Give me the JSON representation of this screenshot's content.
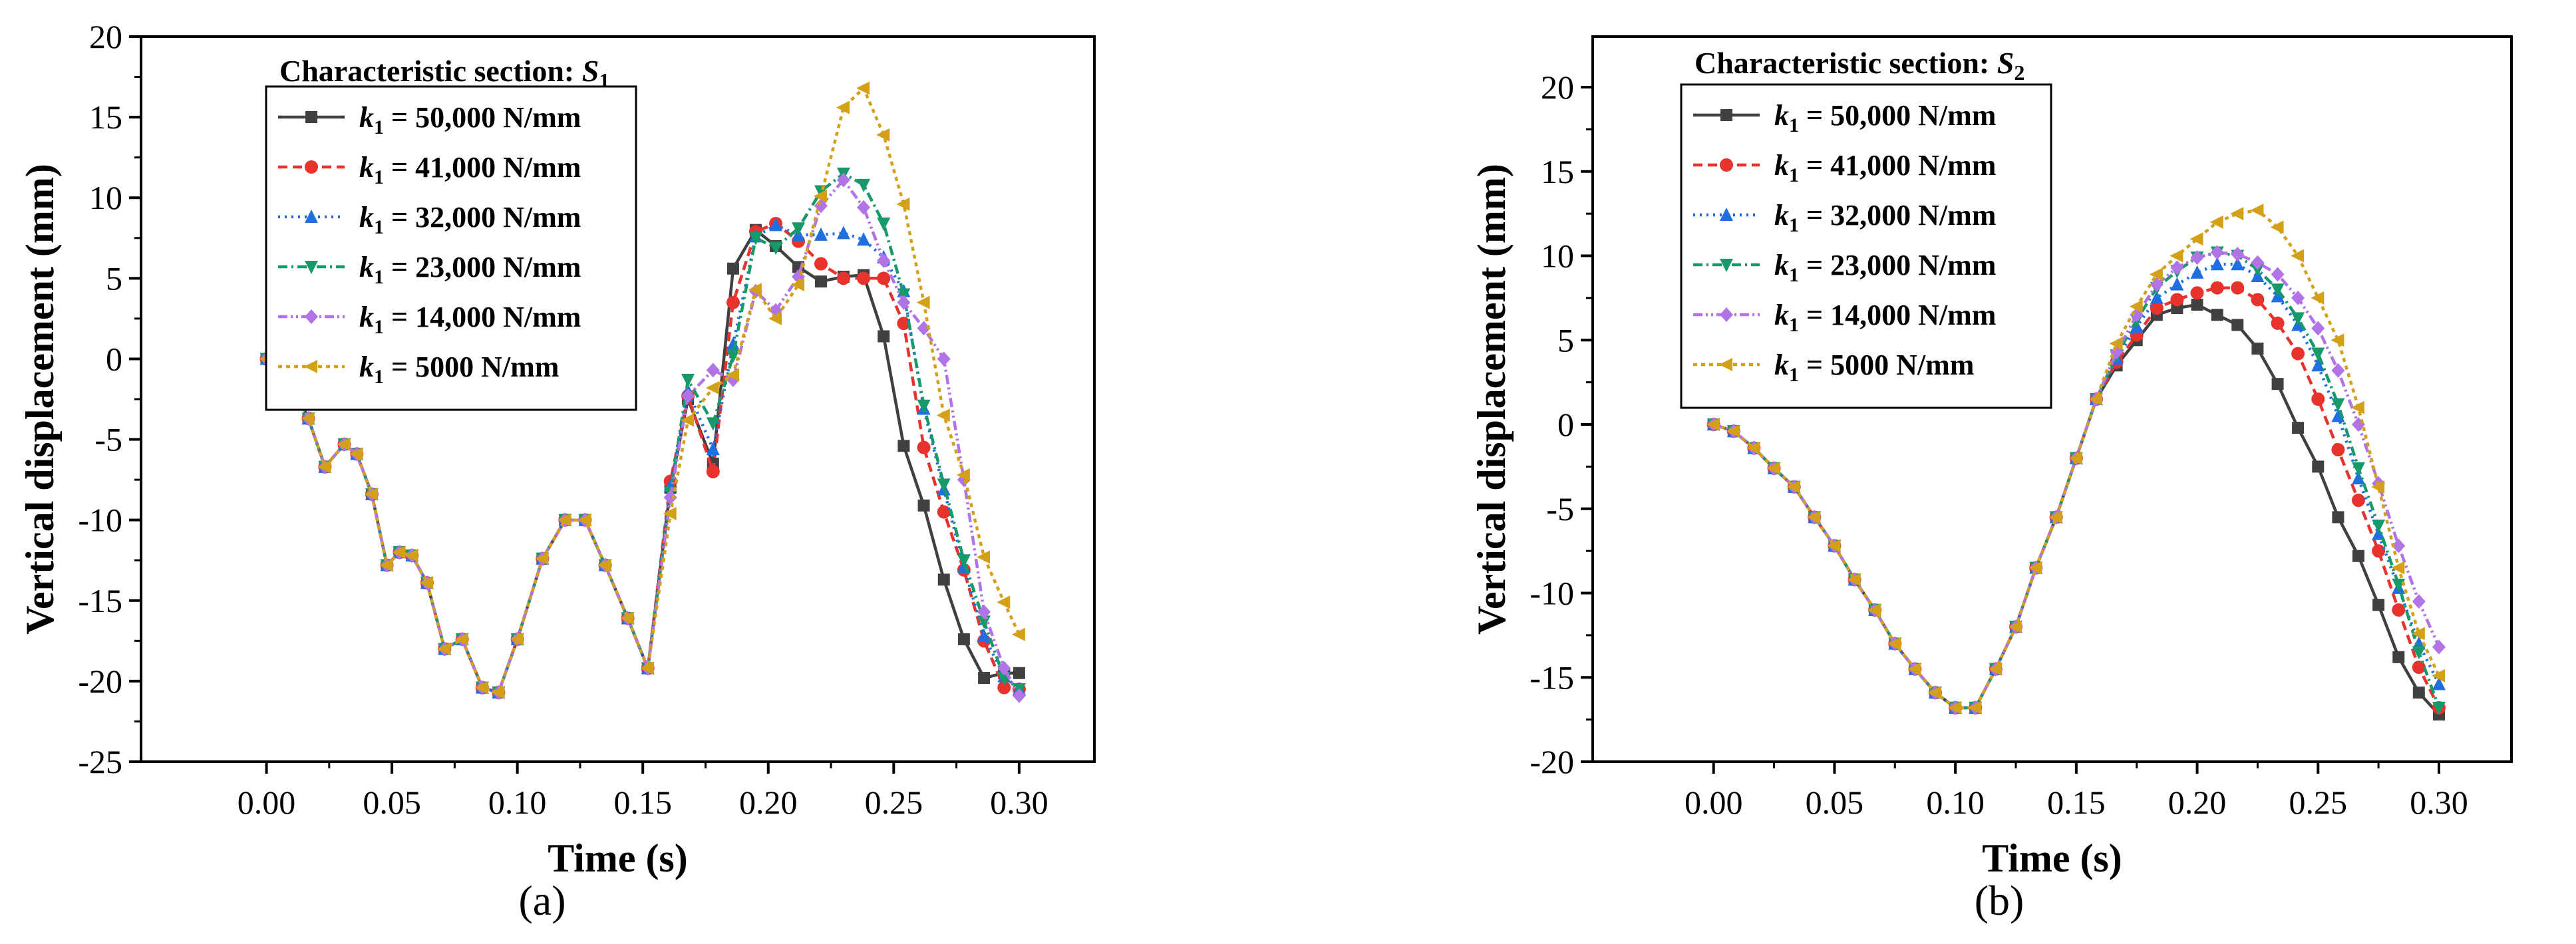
{
  "chart_data": [
    {
      "type": "line",
      "panel_label": "(a)",
      "xlabel": "Time (s)",
      "ylabel": "Vertical displacement (mm)",
      "xlim": [
        -0.05,
        0.33
      ],
      "ylim": [
        -25,
        20
      ],
      "xticks": [
        0.0,
        0.05,
        0.1,
        0.15,
        0.2,
        0.25,
        0.3
      ],
      "xtick_labels": [
        "0.00",
        "0.05",
        "0.10",
        "0.15",
        "0.20",
        "0.25",
        "0.30"
      ],
      "yticks": [
        -25,
        -20,
        -15,
        -10,
        -5,
        0,
        5,
        10,
        15,
        20
      ],
      "ytick_labels": [
        "-25",
        "-20",
        "-15",
        "-10",
        "-5",
        "0",
        "5",
        "10",
        "15",
        "20"
      ],
      "legend": {
        "title": "Characteristic section: ",
        "title_symbol": "S",
        "title_sub": "1",
        "position": "top-left"
      },
      "x": [
        0.0,
        0.008,
        0.0167,
        0.0233,
        0.031,
        0.036,
        0.042,
        0.048,
        0.053,
        0.058,
        0.064,
        0.071,
        0.078,
        0.086,
        0.0925,
        0.1,
        0.11,
        0.119,
        0.127,
        0.135,
        0.144,
        0.152,
        0.161,
        0.168,
        0.178,
        0.186,
        0.195,
        0.203,
        0.212,
        0.221,
        0.23,
        0.238,
        0.246,
        0.254,
        0.262,
        0.27,
        0.278,
        0.286,
        0.294,
        0.3
      ],
      "series": [
        {
          "name": "k1 = 50,000 N/mm",
          "label_sub": "1",
          "label_rest": " = 50,000 N/mm",
          "color": "#404040",
          "dash": "",
          "marker": "square",
          "values": [
            0,
            -0.7,
            -3.7,
            -6.7,
            -5.3,
            -5.9,
            -8.4,
            -12.8,
            -12,
            -12.2,
            -13.9,
            -18,
            -17.4,
            -20.4,
            -20.7,
            -17.4,
            -12.4,
            -10,
            -10,
            -12.8,
            -16.1,
            -19.2,
            -8,
            -2.5,
            -6.5,
            5.6,
            8,
            7,
            5.7,
            4.8,
            5.1,
            5.2,
            1.4,
            -5.4,
            -9.1,
            -13.7,
            -17.4,
            -19.8,
            -19.5,
            -19.5
          ]
        },
        {
          "name": "k1 = 41,000 N/mm",
          "label_sub": "1",
          "label_rest": " = 41,000 N/mm",
          "color": "#e8322e",
          "dash": "14,8",
          "marker": "circle",
          "values": [
            0,
            -0.7,
            -3.7,
            -6.7,
            -5.3,
            -5.9,
            -8.4,
            -12.8,
            -12,
            -12.2,
            -13.9,
            -18,
            -17.4,
            -20.4,
            -20.7,
            -17.4,
            -12.4,
            -10,
            -10,
            -12.8,
            -16.1,
            -19.2,
            -7.6,
            -2.3,
            -7,
            3.5,
            7.9,
            8.4,
            7.3,
            5.9,
            5,
            5,
            5,
            2.2,
            -5.5,
            -9.5,
            -13.1,
            -17.5,
            -20.4,
            -20.5
          ]
        },
        {
          "name": "k1 = 32,000 N/mm",
          "label_sub": "1",
          "label_rest": " = 32,000 N/mm",
          "color": "#1f6fe0",
          "dash": "3,7",
          "marker": "triangle-up",
          "values": [
            0,
            -0.7,
            -3.7,
            -6.7,
            -5.3,
            -5.9,
            -8.4,
            -12.8,
            -12,
            -12.2,
            -13.9,
            -18,
            -17.4,
            -20.4,
            -20.7,
            -17.4,
            -12.4,
            -10,
            -10,
            -12.8,
            -16.1,
            -19.2,
            -7.9,
            -2,
            -5.6,
            0.9,
            7.6,
            8.3,
            7.7,
            7.7,
            7.8,
            7.4,
            6.3,
            4.2,
            -3.1,
            -8.1,
            -12.9,
            -17.2,
            -19.7,
            -20.5
          ]
        },
        {
          "name": "k1 = 23,000 N/mm",
          "label_sub": "1",
          "label_rest": " = 23,000 N/mm",
          "color": "#169a6a",
          "dash": "14,6,3,6",
          "marker": "triangle-down",
          "values": [
            0,
            -0.7,
            -3.7,
            -6.7,
            -5.3,
            -5.9,
            -8.4,
            -12.8,
            -12,
            -12.2,
            -13.9,
            -18,
            -17.4,
            -20.4,
            -20.7,
            -17.4,
            -12.4,
            -10,
            -10,
            -12.8,
            -16.1,
            -19.2,
            -8.3,
            -1.3,
            -4,
            0.2,
            7.5,
            6.9,
            8.1,
            10.4,
            11.5,
            10.8,
            8.4,
            4,
            -2.9,
            -7.8,
            -12.5,
            -16.3,
            -19.8,
            -20.5
          ]
        },
        {
          "name": "k1 = 14,000 N/mm",
          "label_sub": "1",
          "label_rest": " = 14,000 N/mm",
          "color": "#b173e6",
          "dash": "14,5,3,5,3,5",
          "marker": "diamond",
          "values": [
            0,
            -0.7,
            -3.7,
            -6.7,
            -5.3,
            -5.9,
            -8.4,
            -12.8,
            -12,
            -12.2,
            -13.9,
            -18,
            -17.4,
            -20.4,
            -20.7,
            -17.4,
            -12.4,
            -10,
            -10,
            -12.8,
            -16.1,
            -19.2,
            -8.6,
            -2.3,
            -0.7,
            -1.3,
            4.2,
            3,
            5.1,
            9.5,
            11.1,
            9.4,
            6.1,
            3.5,
            1.9,
            0,
            -7.5,
            -15.7,
            -19.2,
            -20.9
          ]
        },
        {
          "name": "k1 = 5000 N/mm",
          "label_sub": "1",
          "label_rest": " = 5000 N/mm",
          "color": "#d4a017",
          "dash": "6,6",
          "marker": "triangle-left",
          "values": [
            0,
            -0.7,
            -3.7,
            -6.7,
            -5.3,
            -5.9,
            -8.4,
            -12.8,
            -12,
            -12.2,
            -13.9,
            -18,
            -17.4,
            -20.4,
            -20.7,
            -17.4,
            -12.4,
            -10,
            -10,
            -12.8,
            -16.1,
            -19.2,
            -9.6,
            -3.8,
            -1.8,
            -1,
            4.3,
            2.5,
            4.6,
            10.1,
            15.6,
            16.8,
            13.9,
            9.6,
            3.5,
            -3.5,
            -7.2,
            -12.3,
            -15.1,
            -17.1
          ]
        }
      ]
    },
    {
      "type": "line",
      "panel_label": "(b)",
      "xlabel": "Time (s)",
      "ylabel": "Vertical displacement (mm)",
      "xlim": [
        -0.05,
        0.33
      ],
      "ylim": [
        -20,
        23
      ],
      "xticks": [
        0.0,
        0.05,
        0.1,
        0.15,
        0.2,
        0.25,
        0.3
      ],
      "xtick_labels": [
        "0.00",
        "0.05",
        "0.10",
        "0.15",
        "0.20",
        "0.25",
        "0.30"
      ],
      "yticks": [
        -20,
        -15,
        -10,
        -5,
        0,
        5,
        10,
        15,
        20
      ],
      "ytick_labels": [
        "-20",
        "-15",
        "-10",
        "-5",
        "0",
        "5",
        "10",
        "15",
        "20"
      ],
      "legend": {
        "title": "Characteristic section: ",
        "title_symbol": "S",
        "title_sub": "2",
        "position": "top-left"
      },
      "x": [
        0.0,
        0.0083,
        0.0167,
        0.025,
        0.0333,
        0.0417,
        0.05,
        0.0583,
        0.0667,
        0.075,
        0.0833,
        0.0917,
        0.1,
        0.1083,
        0.1167,
        0.125,
        0.1333,
        0.1417,
        0.15,
        0.1583,
        0.1667,
        0.175,
        0.1833,
        0.1917,
        0.2,
        0.2083,
        0.2167,
        0.225,
        0.2333,
        0.2417,
        0.25,
        0.2583,
        0.2667,
        0.275,
        0.2833,
        0.2917,
        0.3
      ],
      "series": [
        {
          "name": "k1 = 50,000 N/mm",
          "label_sub": "1",
          "label_rest": " = 50,000 N/mm",
          "color": "#404040",
          "dash": "",
          "marker": "square",
          "values": [
            0,
            -0.4,
            -1.4,
            -2.6,
            -3.7,
            -5.5,
            -7.2,
            -9.2,
            -11,
            -13,
            -14.5,
            -15.9,
            -16.8,
            -16.8,
            -14.5,
            -12,
            -8.5,
            -5.5,
            -2,
            1.5,
            3.5,
            5,
            6.5,
            6.9,
            7.1,
            6.5,
            5.9,
            4.5,
            2.4,
            -0.2,
            -2.5,
            -5.5,
            -7.8,
            -10.7,
            -13.8,
            -15.9,
            -17.2
          ]
        },
        {
          "name": "k1 = 41,000 N/mm",
          "label_sub": "1",
          "label_rest": " = 41,000 N/mm",
          "color": "#e8322e",
          "dash": "14,8",
          "marker": "circle",
          "values": [
            0,
            -0.4,
            -1.4,
            -2.6,
            -3.7,
            -5.5,
            -7.2,
            -9.2,
            -11,
            -13,
            -14.5,
            -15.9,
            -16.8,
            -16.8,
            -14.5,
            -12,
            -8.5,
            -5.5,
            -2,
            1.5,
            3.7,
            5.3,
            6.9,
            7.4,
            7.8,
            8.1,
            8.1,
            7.4,
            6,
            4.2,
            1.5,
            -1.5,
            -4.5,
            -7.5,
            -11,
            -14.4,
            -16.8
          ]
        },
        {
          "name": "k1 = 32,000 N/mm",
          "label_sub": "1",
          "label_rest": " = 32,000 N/mm",
          "color": "#1f6fe0",
          "dash": "3,7",
          "marker": "triangle-up",
          "values": [
            0,
            -0.4,
            -1.4,
            -2.6,
            -3.7,
            -5.5,
            -7.2,
            -9.2,
            -11,
            -13,
            -14.5,
            -15.9,
            -16.8,
            -16.8,
            -14.5,
            -12,
            -8.5,
            -5.5,
            -2,
            1.5,
            3.9,
            5.8,
            7.5,
            8.3,
            9,
            9.5,
            9.5,
            8.8,
            7.6,
            5.9,
            3.5,
            0.5,
            -3.2,
            -6.5,
            -9.7,
            -13,
            -15.4
          ]
        },
        {
          "name": "k1 = 23,000 N/mm",
          "label_sub": "1",
          "label_rest": " = 23,000 N/mm",
          "color": "#169a6a",
          "dash": "14,6,3,6",
          "marker": "triangle-down",
          "values": [
            0,
            -0.4,
            -1.4,
            -2.6,
            -3.7,
            -5.5,
            -7.2,
            -9.2,
            -11,
            -13,
            -14.5,
            -15.9,
            -16.8,
            -16.8,
            -14.5,
            -12,
            -8.5,
            -5.5,
            -2,
            1.5,
            4.1,
            6.2,
            8.1,
            9.1,
            9.9,
            10.2,
            10,
            9.2,
            8,
            6.3,
            4.2,
            1.2,
            -2.6,
            -6,
            -9.5,
            -13.5,
            -16.8
          ]
        },
        {
          "name": "k1 = 14,000 N/mm",
          "label_sub": "1",
          "label_rest": " = 14,000 N/mm",
          "color": "#b173e6",
          "dash": "14,5,3,5,3,5",
          "marker": "diamond",
          "values": [
            0,
            -0.4,
            -1.4,
            -2.6,
            -3.7,
            -5.5,
            -7.2,
            -9.2,
            -11,
            -13,
            -14.5,
            -15.9,
            -16.8,
            -16.8,
            -14.5,
            -12,
            -8.5,
            -5.5,
            -2,
            1.5,
            4.3,
            6.5,
            8.3,
            9.3,
            9.9,
            10.2,
            10.1,
            9.6,
            8.9,
            7.5,
            5.7,
            3.2,
            0,
            -3.5,
            -7.2,
            -10.5,
            -13.2
          ]
        },
        {
          "name": "k1 = 5000 N/mm",
          "label_sub": "1",
          "label_rest": " = 5000 N/mm",
          "color": "#d4a017",
          "dash": "6,6",
          "marker": "triangle-left",
          "values": [
            0,
            -0.4,
            -1.4,
            -2.6,
            -3.7,
            -5.5,
            -7.2,
            -9.2,
            -11,
            -13,
            -14.5,
            -15.9,
            -16.8,
            -16.8,
            -14.5,
            -12,
            -8.5,
            -5.5,
            -2,
            1.5,
            4.8,
            7,
            8.9,
            10,
            11,
            12,
            12.5,
            12.7,
            11.7,
            10,
            7.5,
            5,
            1,
            -3.7,
            -8.5,
            -12.4,
            -14.9
          ]
        }
      ]
    }
  ]
}
